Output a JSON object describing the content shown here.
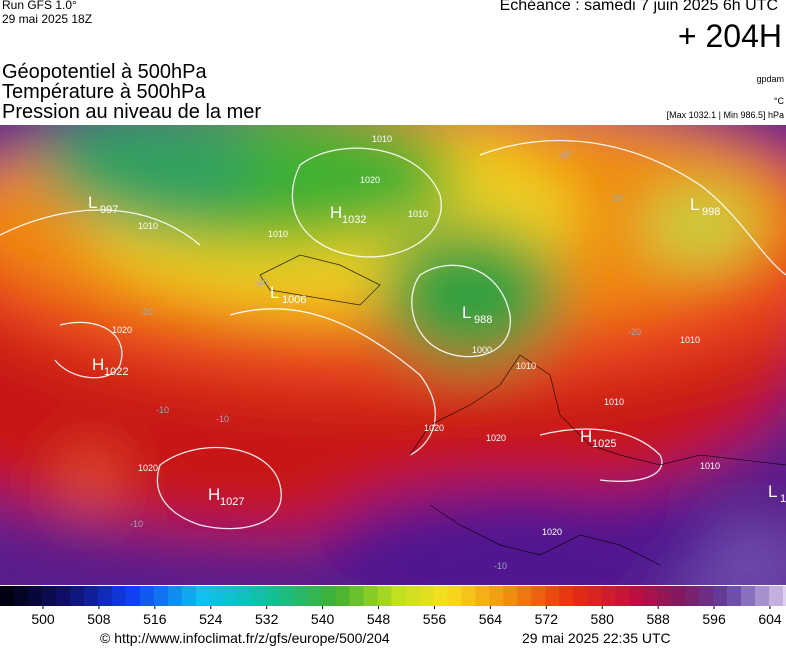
{
  "header": {
    "run": "Run GFS 1.0°",
    "run_date": "29 mai 2025 18Z",
    "valid": "Echéance : samedi 7 juin 2025 6h UTC",
    "lead": "+ 204H",
    "fields": [
      "Géopotentiel à 500hPa",
      "Température à 500hPa",
      "Pression au niveau de la mer"
    ],
    "units": [
      "gpdam",
      "°C",
      "[Max 1032.1 | Min 986.5] hPa"
    ]
  },
  "map": {
    "centers": [
      {
        "letter": "L",
        "value": "997"
      },
      {
        "letter": "H",
        "value": "1032"
      },
      {
        "letter": "L",
        "value": "1006"
      },
      {
        "letter": "L",
        "value": "988"
      },
      {
        "letter": "H",
        "value": "1022"
      },
      {
        "letter": "H",
        "value": "1027"
      },
      {
        "letter": "H",
        "value": "1025"
      },
      {
        "letter": "L",
        "value": "998"
      },
      {
        "letter": "L",
        "value": "1"
      }
    ],
    "isobar_labels": [
      "1010",
      "1020",
      "1010",
      "1010",
      "1010",
      "1020",
      "1000",
      "1010",
      "1020",
      "1020",
      "1020",
      "1020",
      "1010",
      "1010",
      "1010"
    ],
    "temperature_labels": [
      "-20",
      "-20",
      "-20",
      "-20",
      "-20",
      "-10",
      "-10",
      "-10",
      "-10"
    ]
  },
  "colorbar": {
    "ticks": [
      500,
      508,
      516,
      524,
      532,
      540,
      548,
      556,
      564,
      572,
      580,
      588,
      596,
      604
    ]
  },
  "footer": {
    "url": "© http://www.infoclimat.fr/z/gfs/europe/500/204",
    "generated": "29 mai 2025 22:35 UTC"
  }
}
